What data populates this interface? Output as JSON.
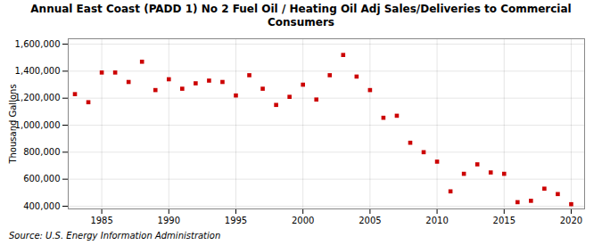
{
  "chart_data": {
    "type": "scatter",
    "title": "Annual East Coast (PADD 1) No 2 Fuel Oil / Heating Oil Adj Sales/Deliveries to Commercial Consumers",
    "ylabel": "Thousand Gallons",
    "annotations": [
      "Source: U.S. Energy Information Administration"
    ],
    "x": [
      1983,
      1984,
      1985,
      1986,
      1987,
      1988,
      1989,
      1990,
      1991,
      1992,
      1993,
      1994,
      1995,
      1996,
      1997,
      1998,
      1999,
      2000,
      2001,
      2002,
      2003,
      2004,
      2005,
      2006,
      2007,
      2008,
      2009,
      2010,
      2011,
      2012,
      2013,
      2014,
      2015,
      2016,
      2017,
      2018,
      2019,
      2020
    ],
    "values": [
      1230000,
      1170000,
      1390000,
      1390000,
      1320000,
      1470000,
      1260000,
      1340000,
      1270000,
      1310000,
      1330000,
      1320000,
      1220000,
      1370000,
      1270000,
      1150000,
      1210000,
      1300000,
      1190000,
      1370000,
      1520000,
      1360000,
      1260000,
      1055000,
      1070000,
      870000,
      800000,
      730000,
      510000,
      640000,
      710000,
      650000,
      640000,
      430000,
      440000,
      530000,
      490000,
      415000
    ],
    "color": "#cc0000",
    "marker": "square",
    "xlim": [
      1982.5,
      2021
    ],
    "ylim": [
      380000,
      1640000
    ],
    "xticks": [
      1985,
      1990,
      1995,
      2000,
      2005,
      2010,
      2015,
      2020
    ],
    "yticks": [
      {
        "value": 400000,
        "label": "400,000"
      },
      {
        "value": 600000,
        "label": "600,000"
      },
      {
        "value": 800000,
        "label": "800,000"
      },
      {
        "value": 1000000,
        "label": "1,000,000"
      },
      {
        "value": 1200000,
        "label": "1,200,000"
      },
      {
        "value": 1400000,
        "label": "1,400,000"
      },
      {
        "value": 1600000,
        "label": "1,600,000"
      }
    ],
    "grid": true
  }
}
